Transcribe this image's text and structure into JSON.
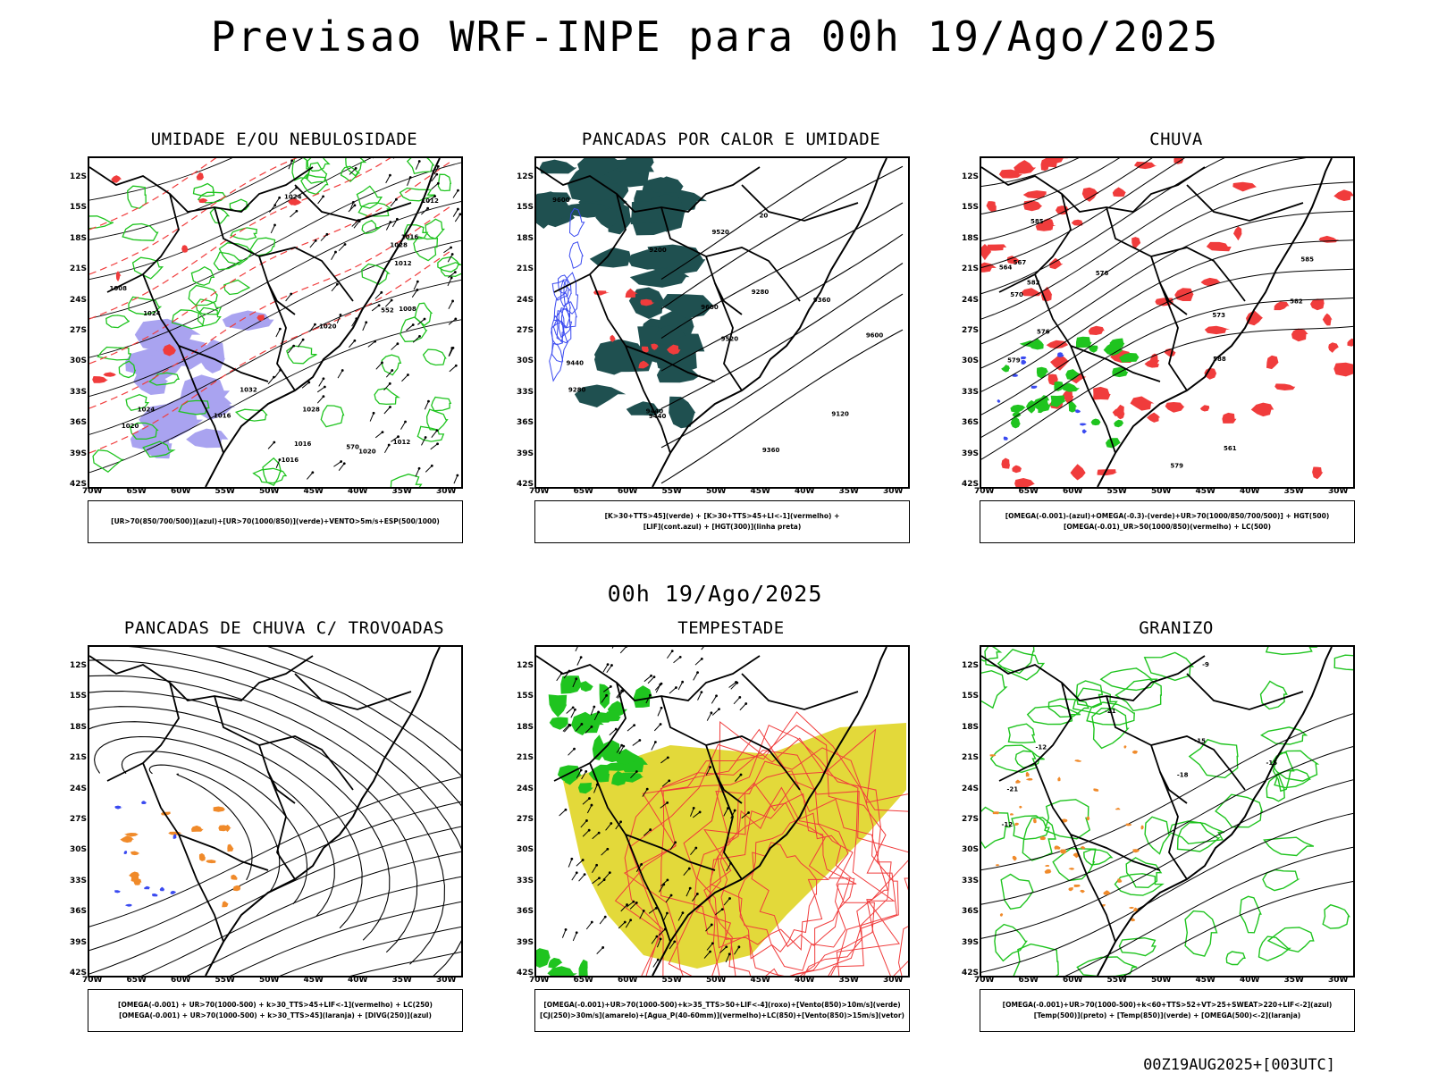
{
  "title": "Previsao WRF-INPE  para 00h 19/Ago/2025",
  "mid_date": "00h 19/Ago/2025",
  "stamp": "00Z19AUG2025+[003UTC]",
  "lat_ticks": [
    "12S",
    "15S",
    "18S",
    "21S",
    "24S",
    "27S",
    "30S",
    "33S",
    "36S",
    "39S",
    "42S"
  ],
  "lon_ticks": [
    "70W",
    "65W",
    "60W",
    "55W",
    "50W",
    "45W",
    "40W",
    "35W",
    "30W"
  ],
  "panels": [
    {
      "title": "UMIDADE E/OU NEBULOSIDADE",
      "legend": [
        "[UR>70(850/700/500)](azul)+[UR>70(1000/850)](verde)+VENTO>5m/s+ESP(500/1000)"
      ],
      "labels": [
        "1012",
        "1016",
        "1016",
        "1008",
        "1020",
        "1020",
        "1024",
        "1012",
        "1008",
        "1016",
        "1016",
        "1020",
        "1024",
        "1028",
        "1028",
        "1032",
        "1024",
        "1012",
        "552",
        "570"
      ]
    },
    {
      "title": "PANCADAS POR CALOR E UMIDADE",
      "legend": [
        "[K>30+TTS>45](verde) + [K>30+TTS>45+LI<-1](vermelho) +",
        "[LIF](cont.azul) + [HGT(300)](linha preta)"
      ],
      "labels": [
        "9600",
        "9600",
        "9600",
        "9520",
        "9520",
        "9440",
        "9440",
        "9360",
        "9360",
        "9280",
        "9280",
        "9200",
        "9120",
        "9440",
        "20"
      ]
    },
    {
      "title": "CHUVA",
      "legend": [
        "[OMEGA(-0.001)-(azul)+OMEGA(-0.3)-(verde)+UR>70(1000/850/700/500)] + HGT(500)",
        "[OMEGA(-0.01)_UR>50(1000/850)(vermelho) + LC(500)"
      ],
      "labels": [
        "585",
        "585",
        "582",
        "582",
        "579",
        "579",
        "576",
        "576",
        "573",
        "570",
        "567",
        "564",
        "561",
        "588"
      ]
    },
    {
      "title": "PANCADAS DE CHUVA C/ TROVOADAS",
      "legend": [
        "[OMEGA(-0.001) + UR>70(1000-500) + k>30_TTS>45+LIF<-1](vermelho) + LC(250)",
        "[OMEGA(-0.001) + UR>70(1000-500) + k>30_TTS>45](laranja) + [DIVG(250)](azul)"
      ],
      "labels": []
    },
    {
      "title": "TEMPESTADE",
      "legend": [
        "[OMEGA(-0.001)+UR>70(1000-500)+k>35_TTS>50+LIF<-4](roxo)+[Vento(850)>10m/s](verde)",
        "[CJ(250)>30m/s](amarelo)+[Agua_P(40-60mm)](vermelho)+LC(850)+[Vento(850)>15m/s](vetor)"
      ],
      "labels": []
    },
    {
      "title": "GRANIZO",
      "legend": [
        "[OMEGA(-0.001)+UR>70(1000-500)+k<60+TTS>52+VT>25+SWEAT>220+LIF<-2](azul)",
        "[Temp(500)](preto) + [Temp(850)](verde) + [OMEGA(500)<-2](laranja)"
      ],
      "labels": [
        "-12",
        "-12",
        "-15",
        "-15",
        "-18",
        "-21",
        "-21",
        "-9"
      ]
    }
  ],
  "colors": {
    "blue_fill": "#a9a3f0",
    "green_contour": "#1fc41f",
    "red_contour": "#f03c3c",
    "teal_fill": "#1f5050",
    "yellow_fill": "#e3d93a",
    "orange": "#f08a2a",
    "blue_dots": "#3a4af0"
  }
}
